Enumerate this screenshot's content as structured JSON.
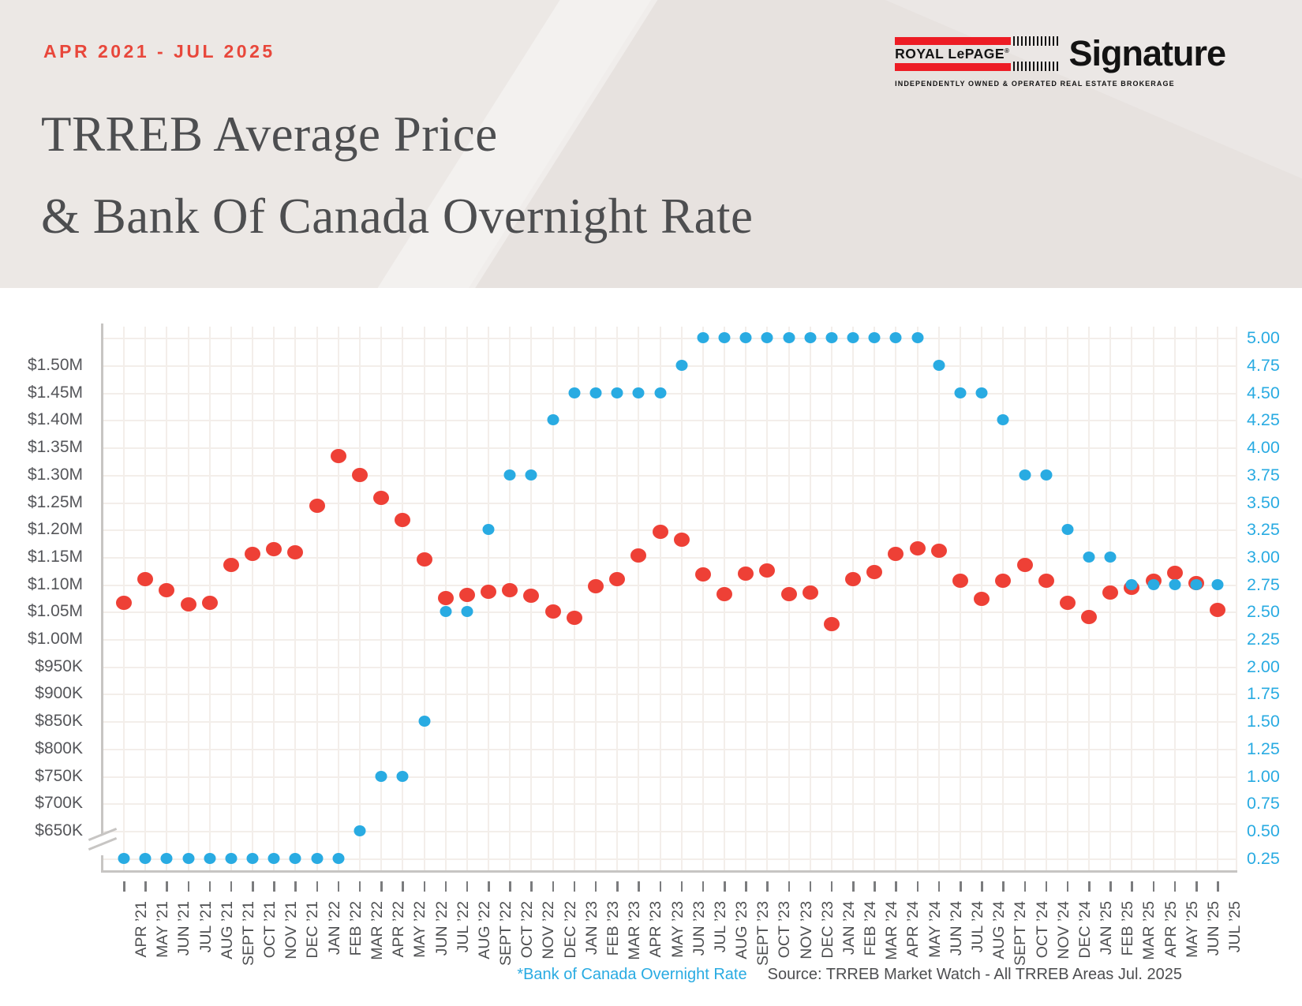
{
  "header": {
    "date_range": "APR 2021 - JUL 2025",
    "title_line1": "TRREB Average Price",
    "title_line2": "& Bank Of Canada Overnight Rate"
  },
  "logo": {
    "brand": "ROYAL LePAGE",
    "reg_mark": "®",
    "name": "Signature",
    "tagline": "INDEPENDENTLY OWNED & OPERATED REAL ESTATE BROKERAGE"
  },
  "footer": {
    "legend_note": "*Bank of Canada Overnight Rate",
    "source": "Source: TRREB Market Watch - All TRREB Areas Jul. 2025"
  },
  "colors": {
    "price_dot": "#EE4036",
    "rate_dot": "#29ABE2",
    "accent_red": "#E8473B",
    "title_text": "#4D4E50",
    "axis_text": "#55565A",
    "grid": "#F3EEEA",
    "header_bg": "#ECE8E5"
  },
  "chart_data": {
    "type": "scatter",
    "title": "TRREB Average Price & Bank Of Canada Overnight Rate",
    "grid": true,
    "x_labels": [
      "APR ’21",
      "MAY ’21",
      "JUN ’21",
      "JUL ’21",
      "AUG ’21",
      "SEPT ’21",
      "OCT ’21",
      "NOV ’21",
      "DEC ’21",
      "JAN ’22",
      "FEB ’22",
      "MAR ’22",
      "APR ’22",
      "MAY ’22",
      "JUN ’22",
      "JUL ’22",
      "AUG ’22",
      "SEPT ’22",
      "OCT ’22",
      "NOV ’22",
      "DEC ’22",
      "JAN ’23",
      "FEB ’23",
      "MAR ’23",
      "APR ’23",
      "MAY ’23",
      "JUN ’23",
      "JUL ’23",
      "AUG ’23",
      "SEPT ’23",
      "OCT ’23",
      "NOV ’23",
      "DEC ’23",
      "JAN ’24",
      "FEB ’24",
      "MAR ’24",
      "APR ’24",
      "MAY ’24",
      "JUN ’24",
      "JUL ’24",
      "AUG ’24",
      "SEPT ’24",
      "OCT ’24",
      "NOV ’24",
      "DEC ’24",
      "JAN ’25",
      "FEB ’25",
      "MAR ’25",
      "APR ’25",
      "MAY ’25",
      "JUN ’25",
      "JUL ’25"
    ],
    "left_axis": {
      "label": "TRREB Average Price",
      "tick_labels": [
        "$1.50M",
        "$1.45M",
        "$1.40M",
        "$1.35M",
        "$1.30M",
        "$1.25M",
        "$1.20M",
        "$1.15M",
        "$1.10M",
        "$1.05M",
        "$1.00M",
        "$950K",
        "$900K",
        "$850K",
        "$800K",
        "$750K",
        "$700K",
        "$650K"
      ],
      "max": 1500000,
      "step": 50000,
      "axis_break_below": 650000
    },
    "right_axis": {
      "label": "Bank of Canada Overnight Rate",
      "tick_labels": [
        "5.00",
        "4.75",
        "4.50",
        "4.25",
        "4.00",
        "3.75",
        "3.50",
        "3.25",
        "3.00",
        "2.75",
        "2.50",
        "2.25",
        "2.00",
        "1.75",
        "1.50",
        "1.25",
        "1.00",
        "0.75",
        "0.50",
        "0.25"
      ],
      "max": 5.0,
      "step": 0.25
    },
    "series": [
      {
        "name": "TRREB Average Price",
        "axis": "left",
        "color_key": "price_dot",
        "values": [
          1066000,
          1110000,
          1090000,
          1064000,
          1066000,
          1136000,
          1156000,
          1164000,
          1158000,
          1243000,
          1335000,
          1300000,
          1258000,
          1218000,
          1146000,
          1075000,
          1080000,
          1087000,
          1089000,
          1079000,
          1051000,
          1039000,
          1096000,
          1109000,
          1153000,
          1196000,
          1182000,
          1118000,
          1082000,
          1119000,
          1126000,
          1082000,
          1085000,
          1027000,
          1109000,
          1122000,
          1156000,
          1166000,
          1162000,
          1107000,
          1074000,
          1107000,
          1135000,
          1106000,
          1067000,
          1041000,
          1085000,
          1093000,
          1107000,
          1121000,
          1102000,
          1054000
        ]
      },
      {
        "name": "Bank of Canada Overnight Rate",
        "axis": "right",
        "color_key": "rate_dot",
        "values": [
          0.25,
          0.25,
          0.25,
          0.25,
          0.25,
          0.25,
          0.25,
          0.25,
          0.25,
          0.25,
          0.25,
          0.5,
          1.0,
          1.0,
          1.5,
          2.5,
          2.5,
          3.25,
          3.75,
          3.75,
          4.25,
          4.5,
          4.5,
          4.5,
          4.5,
          4.5,
          4.75,
          5.0,
          5.0,
          5.0,
          5.0,
          5.0,
          5.0,
          5.0,
          5.0,
          5.0,
          5.0,
          5.0,
          4.75,
          4.5,
          4.5,
          4.25,
          3.75,
          3.75,
          3.25,
          3.0,
          3.0,
          2.75,
          2.75,
          2.75,
          2.75,
          2.75
        ]
      }
    ]
  }
}
